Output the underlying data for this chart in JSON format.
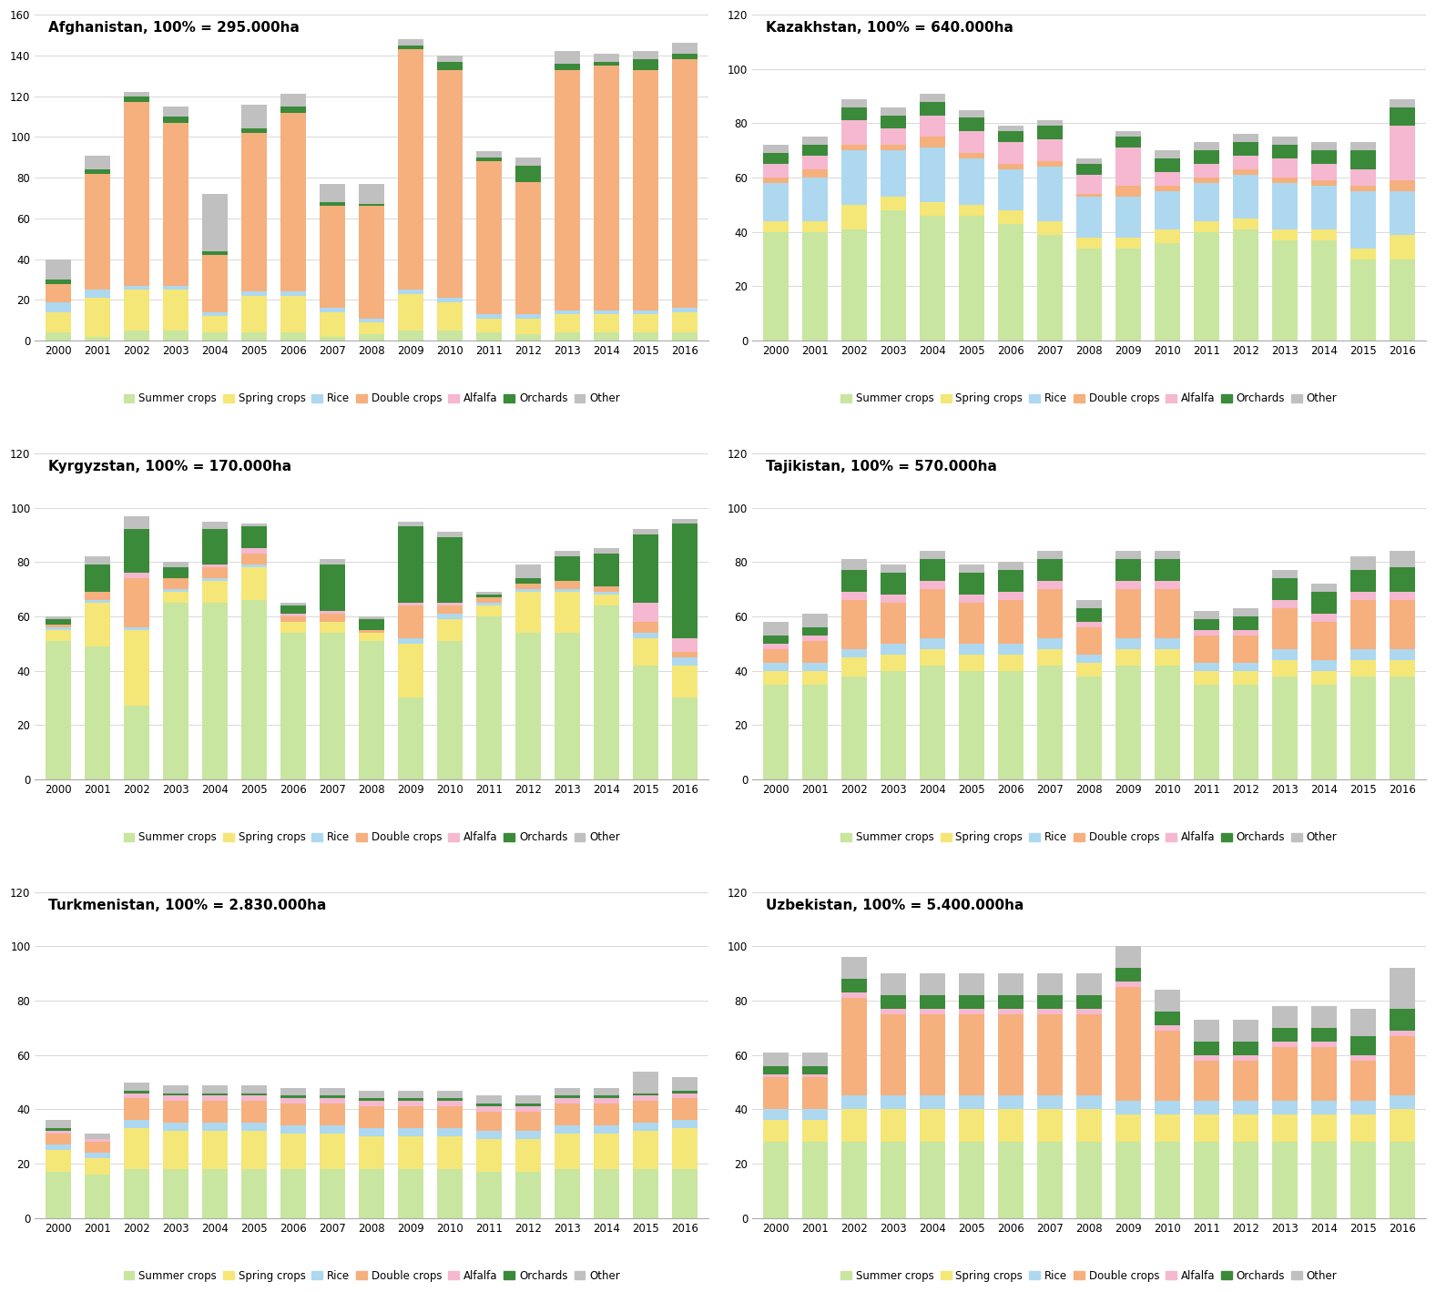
{
  "years": [
    2000,
    2001,
    2002,
    2003,
    2004,
    2005,
    2006,
    2007,
    2008,
    2009,
    2010,
    2011,
    2012,
    2013,
    2014,
    2015,
    2016
  ],
  "colors": {
    "Summer crops": "#c8e6a0",
    "Spring crops": "#f5e678",
    "Rice": "#add8f0",
    "Double crops": "#f5b07d",
    "Alfalfa": "#f5b8d0",
    "Orchards": "#3a8a3a",
    "Other": "#c0c0c0"
  },
  "categories": [
    "Summer crops",
    "Spring crops",
    "Rice",
    "Double crops",
    "Alfalfa",
    "Orchards",
    "Other"
  ],
  "subplots": [
    {
      "title": "Afghanistan, 100% = 295.000ha",
      "ylim": [
        0,
        160
      ],
      "yticks": [
        0,
        20,
        40,
        60,
        80,
        100,
        120,
        140,
        160
      ],
      "data": {
        "Summer crops": [
          4,
          2,
          5,
          5,
          4,
          4,
          4,
          2,
          3,
          5,
          5,
          4,
          3,
          4,
          4,
          4,
          4
        ],
        "Spring crops": [
          10,
          19,
          20,
          20,
          8,
          18,
          18,
          12,
          6,
          18,
          14,
          7,
          8,
          9,
          9,
          9,
          10
        ],
        "Rice": [
          5,
          4,
          2,
          2,
          2,
          2,
          2,
          2,
          2,
          2,
          2,
          2,
          2,
          2,
          2,
          2,
          2
        ],
        "Double crops": [
          9,
          57,
          90,
          80,
          28,
          78,
          88,
          50,
          55,
          118,
          112,
          75,
          65,
          118,
          120,
          118,
          122
        ],
        "Alfalfa": [
          0,
          0,
          0,
          0,
          0,
          0,
          0,
          0,
          0,
          0,
          0,
          0,
          0,
          0,
          0,
          0,
          0
        ],
        "Orchards": [
          2,
          2,
          3,
          3,
          2,
          2,
          3,
          2,
          1,
          2,
          4,
          2,
          8,
          3,
          2,
          5,
          3
        ],
        "Other": [
          10,
          7,
          2,
          5,
          28,
          12,
          6,
          9,
          10,
          3,
          3,
          3,
          4,
          6,
          4,
          4,
          5
        ]
      }
    },
    {
      "title": "Kazakhstan, 100% = 640.000ha",
      "ylim": [
        0,
        120
      ],
      "yticks": [
        0,
        20,
        40,
        60,
        80,
        100,
        120
      ],
      "data": {
        "Summer crops": [
          40,
          40,
          41,
          48,
          46,
          46,
          43,
          39,
          34,
          34,
          36,
          40,
          41,
          37,
          37,
          30,
          30
        ],
        "Spring crops": [
          4,
          4,
          9,
          5,
          5,
          4,
          5,
          5,
          4,
          4,
          5,
          4,
          4,
          4,
          4,
          4,
          9
        ],
        "Rice": [
          14,
          16,
          20,
          17,
          20,
          17,
          15,
          20,
          15,
          15,
          14,
          14,
          16,
          17,
          16,
          21,
          16
        ],
        "Double crops": [
          2,
          3,
          2,
          2,
          4,
          2,
          2,
          2,
          1,
          4,
          2,
          2,
          2,
          2,
          2,
          2,
          4
        ],
        "Alfalfa": [
          5,
          5,
          9,
          6,
          8,
          8,
          8,
          8,
          7,
          14,
          5,
          5,
          5,
          7,
          6,
          6,
          20
        ],
        "Orchards": [
          4,
          4,
          5,
          5,
          5,
          5,
          4,
          5,
          4,
          4,
          5,
          5,
          5,
          5,
          5,
          7,
          7
        ],
        "Other": [
          3,
          3,
          3,
          3,
          3,
          3,
          2,
          2,
          2,
          2,
          3,
          3,
          3,
          3,
          3,
          3,
          3
        ]
      }
    },
    {
      "title": "Kyrgyzstan, 100% = 170.000ha",
      "ylim": [
        0,
        120
      ],
      "yticks": [
        0,
        20,
        40,
        60,
        80,
        100,
        120
      ],
      "data": {
        "Summer crops": [
          51,
          49,
          27,
          65,
          65,
          66,
          54,
          54,
          51,
          30,
          51,
          60,
          54,
          54,
          64,
          42,
          30
        ],
        "Spring crops": [
          4,
          16,
          28,
          4,
          8,
          12,
          4,
          4,
          3,
          20,
          8,
          4,
          15,
          15,
          4,
          10,
          12
        ],
        "Rice": [
          1,
          1,
          1,
          1,
          1,
          1,
          0,
          0,
          0,
          2,
          2,
          1,
          1,
          1,
          1,
          2,
          3
        ],
        "Double crops": [
          1,
          3,
          18,
          4,
          4,
          4,
          2,
          3,
          1,
          12,
          3,
          2,
          2,
          3,
          2,
          4,
          2
        ],
        "Alfalfa": [
          0,
          0,
          2,
          0,
          1,
          2,
          1,
          1,
          0,
          1,
          1,
          0,
          0,
          0,
          0,
          7,
          5
        ],
        "Orchards": [
          2,
          10,
          16,
          4,
          13,
          8,
          3,
          17,
          4,
          28,
          24,
          1,
          2,
          9,
          12,
          25,
          42
        ],
        "Other": [
          1,
          3,
          5,
          2,
          3,
          1,
          1,
          2,
          1,
          2,
          2,
          1,
          5,
          2,
          2,
          2,
          2
        ]
      }
    },
    {
      "title": "Tajikistan, 100% = 570.000ha",
      "ylim": [
        0,
        120
      ],
      "yticks": [
        0,
        20,
        40,
        60,
        80,
        100,
        120
      ],
      "data": {
        "Summer crops": [
          35,
          35,
          38,
          40,
          42,
          40,
          40,
          42,
          38,
          42,
          42,
          35,
          35,
          38,
          35,
          38,
          38
        ],
        "Spring crops": [
          5,
          5,
          7,
          6,
          6,
          6,
          6,
          6,
          5,
          6,
          6,
          5,
          5,
          6,
          5,
          6,
          6
        ],
        "Rice": [
          3,
          3,
          3,
          4,
          4,
          4,
          4,
          4,
          3,
          4,
          4,
          3,
          3,
          4,
          4,
          4,
          4
        ],
        "Double crops": [
          5,
          8,
          18,
          15,
          18,
          15,
          16,
          18,
          10,
          18,
          18,
          10,
          10,
          15,
          14,
          18,
          18
        ],
        "Alfalfa": [
          2,
          2,
          3,
          3,
          3,
          3,
          3,
          3,
          2,
          3,
          3,
          2,
          2,
          3,
          3,
          3,
          3
        ],
        "Orchards": [
          3,
          3,
          8,
          8,
          8,
          8,
          8,
          8,
          5,
          8,
          8,
          4,
          5,
          8,
          8,
          8,
          9
        ],
        "Other": [
          5,
          5,
          4,
          3,
          3,
          3,
          3,
          3,
          3,
          3,
          3,
          3,
          3,
          3,
          3,
          5,
          6
        ]
      }
    },
    {
      "title": "Turkmenistan, 100% = 2.830.000ha",
      "ylim": [
        0,
        120
      ],
      "yticks": [
        0,
        20,
        40,
        60,
        80,
        100,
        120
      ],
      "data": {
        "Summer crops": [
          17,
          16,
          18,
          18,
          18,
          18,
          18,
          18,
          18,
          18,
          18,
          17,
          17,
          18,
          18,
          18,
          18
        ],
        "Spring crops": [
          8,
          6,
          15,
          14,
          14,
          14,
          13,
          13,
          12,
          12,
          12,
          12,
          12,
          13,
          13,
          14,
          15
        ],
        "Rice": [
          2,
          2,
          3,
          3,
          3,
          3,
          3,
          3,
          3,
          3,
          3,
          3,
          3,
          3,
          3,
          3,
          3
        ],
        "Double crops": [
          4,
          4,
          8,
          8,
          8,
          8,
          8,
          8,
          8,
          8,
          8,
          7,
          7,
          8,
          8,
          8,
          8
        ],
        "Alfalfa": [
          1,
          1,
          2,
          2,
          2,
          2,
          2,
          2,
          2,
          2,
          2,
          2,
          2,
          2,
          2,
          2,
          2
        ],
        "Orchards": [
          1,
          0,
          1,
          1,
          1,
          1,
          1,
          1,
          1,
          1,
          1,
          1,
          1,
          1,
          1,
          1,
          1
        ],
        "Other": [
          3,
          2,
          3,
          3,
          3,
          3,
          3,
          3,
          3,
          3,
          3,
          3,
          3,
          3,
          3,
          8,
          5
        ]
      }
    },
    {
      "title": "Uzbekistan, 100% = 5.400.000ha",
      "ylim": [
        0,
        120
      ],
      "yticks": [
        0,
        20,
        40,
        60,
        80,
        100,
        120
      ],
      "data": {
        "Summer crops": [
          28,
          28,
          28,
          28,
          28,
          28,
          28,
          28,
          28,
          28,
          28,
          28,
          28,
          28,
          28,
          28,
          28
        ],
        "Spring crops": [
          8,
          8,
          12,
          12,
          12,
          12,
          12,
          12,
          12,
          10,
          10,
          10,
          10,
          10,
          10,
          10,
          12
        ],
        "Rice": [
          4,
          4,
          5,
          5,
          5,
          5,
          5,
          5,
          5,
          5,
          5,
          5,
          5,
          5,
          5,
          5,
          5
        ],
        "Double crops": [
          12,
          12,
          36,
          30,
          30,
          30,
          30,
          30,
          30,
          42,
          26,
          15,
          15,
          20,
          20,
          15,
          22
        ],
        "Alfalfa": [
          1,
          1,
          2,
          2,
          2,
          2,
          2,
          2,
          2,
          2,
          2,
          2,
          2,
          2,
          2,
          2,
          2
        ],
        "Orchards": [
          3,
          3,
          5,
          5,
          5,
          5,
          5,
          5,
          5,
          5,
          5,
          5,
          5,
          5,
          5,
          7,
          8
        ],
        "Other": [
          5,
          5,
          8,
          8,
          8,
          8,
          8,
          8,
          8,
          8,
          8,
          8,
          8,
          8,
          8,
          10,
          15
        ]
      }
    }
  ],
  "background_color": "#ffffff",
  "bar_width": 0.65,
  "legend_fontsize": 8.5,
  "title_fontsize": 11,
  "tick_fontsize": 8.5,
  "grid_color": "#d8d8d8"
}
